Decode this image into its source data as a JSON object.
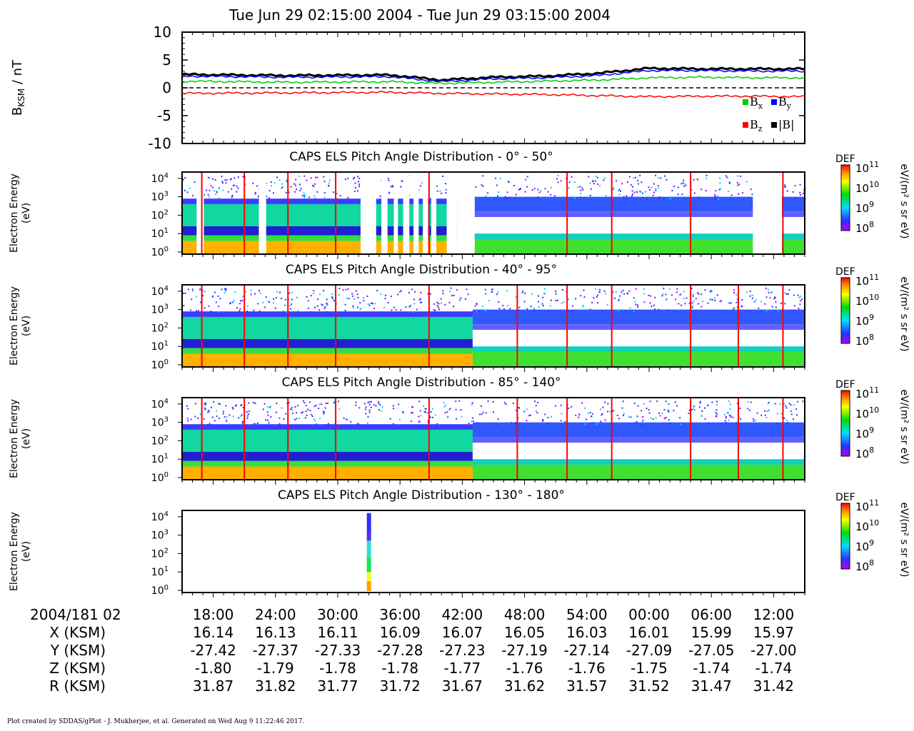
{
  "title": "Tue Jun 29 02:15:00 2004 - Tue Jun 29 03:15:00 2004",
  "footer": "Plot created by SDDAS/gPlot - J. Mukherjee, et al.  Generated on Wed Aug 9 11:22:46 2017.",
  "chart_data": [
    {
      "type": "line",
      "ylabel_main": "B",
      "ylabel_sub": "KSM",
      "ylabel_tail": " / nT",
      "ylim": [
        -10,
        10
      ],
      "yticks": [
        10,
        5,
        0,
        -5,
        -10
      ],
      "x_minutes": [
        0,
        10,
        20,
        25,
        30,
        35,
        40,
        45,
        50,
        55,
        60
      ],
      "series": [
        {
          "name": "|B|",
          "color": "#000000",
          "values": [
            2.4,
            2.2,
            2.3,
            1.4,
            1.9,
            2.1,
            2.6,
            3.5,
            3.4,
            3.4,
            3.4
          ]
        },
        {
          "name": "B",
          "sub": "y",
          "color": "#0000ff",
          "values": [
            2.1,
            1.9,
            2.0,
            1.1,
            1.6,
            1.8,
            2.2,
            3.1,
            3.1,
            3.0,
            3.0
          ]
        },
        {
          "name": "B",
          "sub": "x",
          "color": "#00cc00",
          "values": [
            1.2,
            1.0,
            1.1,
            0.8,
            1.0,
            1.2,
            1.4,
            1.8,
            1.9,
            1.8,
            1.8
          ]
        },
        {
          "name": "B",
          "sub": "z",
          "color": "#ff0000",
          "values": [
            -1.0,
            -0.9,
            -0.8,
            -1.0,
            -1.1,
            -1.2,
            -1.4,
            -1.6,
            -1.5,
            -1.5,
            -1.6
          ]
        }
      ]
    },
    {
      "type": "heatmap",
      "title": "CAPS ELS Pitch Angle Distribution - 0° - 50°",
      "ylabel": [
        "Electron Energy",
        "(eV)"
      ],
      "yticks": [
        "10",
        "10",
        "10",
        "10",
        "10"
      ],
      "ytick_exp": [
        "4",
        "3",
        "2",
        "1",
        "0"
      ],
      "colorbar": {
        "label": "DEF",
        "unit": "eV/(m² s sr eV)",
        "ticks": [
          "10",
          "10",
          "10",
          "10"
        ],
        "exps": [
          "11",
          "10",
          "9",
          "8"
        ]
      }
    },
    {
      "type": "heatmap",
      "title": "CAPS ELS Pitch Angle Distribution - 40° - 95°",
      "ylabel": [
        "Electron Energy",
        "(eV)"
      ],
      "yticks": [
        "10",
        "10",
        "10",
        "10",
        "10"
      ],
      "ytick_exp": [
        "4",
        "3",
        "2",
        "1",
        "0"
      ],
      "colorbar": {
        "label": "DEF",
        "unit": "eV/(m² s sr eV)",
        "ticks": [
          "10",
          "10",
          "10",
          "10"
        ],
        "exps": [
          "11",
          "10",
          "9",
          "8"
        ]
      }
    },
    {
      "type": "heatmap",
      "title": "CAPS ELS Pitch Angle Distribution - 85° - 140°",
      "ylabel": [
        "Electron Energy",
        "(eV)"
      ],
      "yticks": [
        "10",
        "10",
        "10",
        "10",
        "10"
      ],
      "ytick_exp": [
        "4",
        "3",
        "2",
        "1",
        "0"
      ],
      "colorbar": {
        "label": "DEF",
        "unit": "eV/(m² s sr eV)",
        "ticks": [
          "10",
          "10",
          "10",
          "10"
        ],
        "exps": [
          "11",
          "10",
          "9",
          "8"
        ]
      }
    },
    {
      "type": "heatmap",
      "title": "CAPS ELS Pitch Angle Distribution - 130° - 180°",
      "ylabel": [
        "Electron Energy",
        "(eV)"
      ],
      "yticks": [
        "10",
        "10",
        "10",
        "10",
        "10"
      ],
      "ytick_exp": [
        "4",
        "3",
        "2",
        "1",
        "0"
      ],
      "colorbar": {
        "label": "DEF",
        "unit": "eV/(m² s sr eV)",
        "ticks": [
          "10",
          "10",
          "10",
          "10"
        ],
        "exps": [
          "11",
          "10",
          "9",
          "8"
        ]
      }
    }
  ],
  "xaxis_table": {
    "rows": [
      {
        "label": "2004/181 02",
        "values": [
          "18:00",
          "24:00",
          "30:00",
          "36:00",
          "42:00",
          "48:00",
          "54:00",
          "00:00",
          "06:00",
          "12:00"
        ]
      },
      {
        "label": "X (KSM)",
        "values": [
          "16.14",
          "16.13",
          "16.11",
          "16.09",
          "16.07",
          "16.05",
          "16.03",
          "16.01",
          "15.99",
          "15.97"
        ]
      },
      {
        "label": "Y (KSM)",
        "values": [
          "-27.42",
          "-27.37",
          "-27.33",
          "-27.28",
          "-27.23",
          "-27.19",
          "-27.14",
          "-27.09",
          "-27.05",
          "-27.00"
        ]
      },
      {
        "label": "Z (KSM)",
        "values": [
          "-1.80",
          "-1.79",
          "-1.78",
          "-1.78",
          "-1.77",
          "-1.76",
          "-1.76",
          "-1.75",
          "-1.74",
          "-1.74"
        ]
      },
      {
        "label": "R (KSM)",
        "values": [
          "31.87",
          "31.82",
          "31.77",
          "31.72",
          "31.67",
          "31.62",
          "31.57",
          "31.52",
          "31.47",
          "31.42"
        ]
      }
    ]
  }
}
